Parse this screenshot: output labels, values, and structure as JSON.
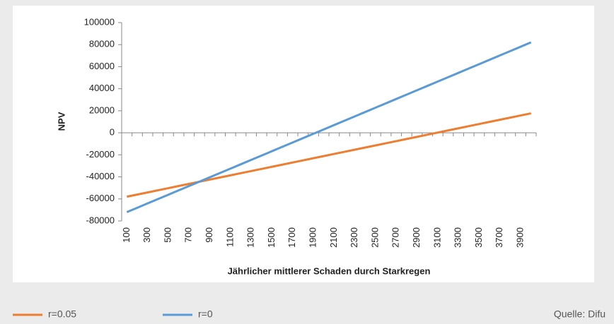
{
  "chart_data": {
    "type": "line",
    "y_label": "NPV",
    "x_label": "Jährlicher mittlerer Schaden durch Starkregen",
    "source": "Quelle: Difu",
    "categories": [
      "100",
      null,
      "300",
      null,
      "500",
      null,
      "700",
      null,
      "900",
      null,
      "1100",
      null,
      "1300",
      null,
      "1500",
      null,
      "1700",
      null,
      "1900",
      null,
      "2100",
      null,
      "2300",
      null,
      "2500",
      null,
      "2700",
      null,
      "2900",
      null,
      "3100",
      null,
      "3300",
      null,
      "3500",
      null,
      "3700",
      null,
      "3900",
      null
    ],
    "series": [
      {
        "name": "r=0.05",
        "color": "#ed7d31",
        "values": [
          -58000,
          -56060,
          -54120,
          -52180,
          -50240,
          -48300,
          -46360,
          -44420,
          -42480,
          -40540,
          -38600,
          -36660,
          -34720,
          -32780,
          -30840,
          -28900,
          -26960,
          -25020,
          -23080,
          -21140,
          -19200,
          -17260,
          -15320,
          -13380,
          -11440,
          -9500,
          -7560,
          -5620,
          -3680,
          -1740,
          200,
          2140,
          4080,
          6020,
          7960,
          9900,
          11840,
          13780,
          15720,
          17660
        ]
      },
      {
        "name": "r=0",
        "color": "#5b9bd5",
        "values": [
          -72000,
          -68050,
          -64100,
          -60150,
          -56200,
          -52250,
          -48300,
          -44350,
          -40400,
          -36450,
          -32500,
          -28550,
          -24600,
          -20650,
          -16700,
          -12750,
          -8800,
          -4850,
          -900,
          3050,
          7000,
          10950,
          14900,
          18850,
          22800,
          26750,
          30700,
          34650,
          38600,
          42550,
          46500,
          50450,
          54400,
          58350,
          62300,
          66250,
          70200,
          74150,
          78100,
          82050
        ]
      }
    ],
    "ylim": [
      -80000,
      100000
    ],
    "yticks": [
      -80000,
      -60000,
      -40000,
      -20000,
      0,
      20000,
      40000,
      60000,
      80000,
      100000
    ],
    "grid": false
  }
}
